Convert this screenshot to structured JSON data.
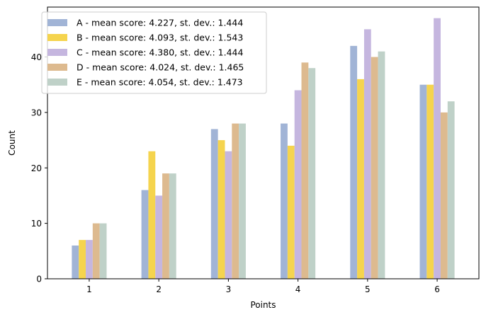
{
  "chart_data": {
    "type": "bar",
    "xlabel": "Points",
    "ylabel": "Count",
    "categories": [
      "1",
      "2",
      "3",
      "4",
      "5",
      "6"
    ],
    "ylim": [
      0,
      49
    ],
    "yticks": [
      0,
      10,
      20,
      30,
      40
    ],
    "grid": false,
    "legend_position": "top-left",
    "series": [
      {
        "name": "A - mean score: 4.227, st. dev.: 1.444",
        "color": "#a1b4d6",
        "values": [
          6,
          16,
          27,
          28,
          42,
          35
        ]
      },
      {
        "name": "B - mean score: 4.093, st. dev.: 1.543",
        "color": "#f5d44e",
        "values": [
          7,
          23,
          25,
          24,
          36,
          35
        ]
      },
      {
        "name": "C - mean score: 4.380, st. dev.: 1.444",
        "color": "#c5b6df",
        "values": [
          7,
          15,
          23,
          34,
          45,
          47
        ]
      },
      {
        "name": "D - mean score: 4.024, st. dev.: 1.465",
        "color": "#ddba8f",
        "values": [
          10,
          19,
          28,
          39,
          40,
          30
        ]
      },
      {
        "name": "E - mean score: 4.054, st. dev.: 1.473",
        "color": "#bfd1c8",
        "values": [
          10,
          19,
          28,
          38,
          41,
          32
        ]
      }
    ]
  }
}
